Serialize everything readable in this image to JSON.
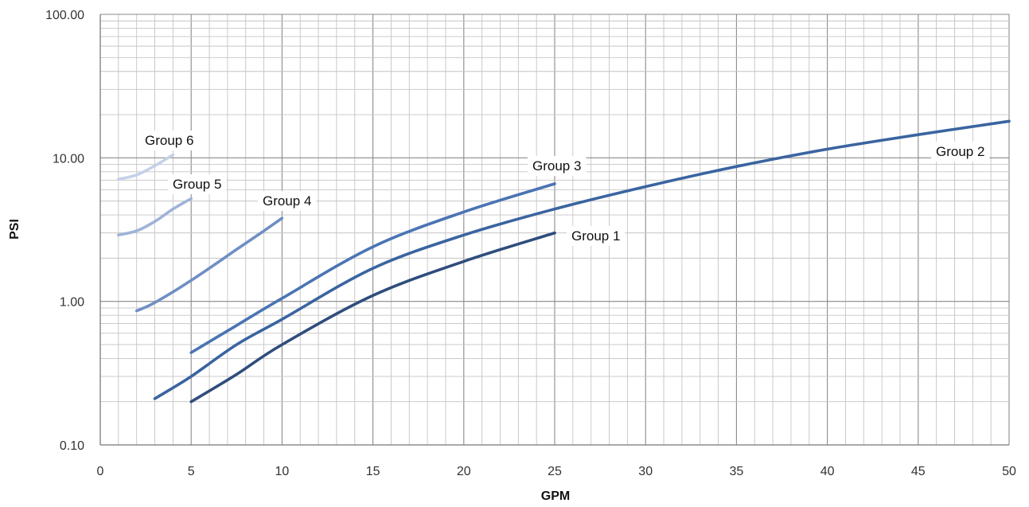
{
  "chart_data": {
    "type": "line",
    "xlabel": "GPM",
    "ylabel": "PSI",
    "xlim": [
      0,
      50
    ],
    "ylim": [
      0.1,
      100
    ],
    "y_scale": "log",
    "grid": true,
    "x_ticks": [
      "0",
      "5",
      "10",
      "15",
      "20",
      "25",
      "30",
      "35",
      "40",
      "45",
      "50"
    ],
    "y_ticks": [
      "0.10",
      "1.00",
      "10.00",
      "100.00"
    ],
    "series": [
      {
        "name": "Group 1",
        "color": "#2f4d7c",
        "x": [
          5,
          7.5,
          10,
          15,
          20,
          25
        ],
        "y": [
          0.2,
          0.31,
          0.5,
          1.1,
          1.9,
          3.0
        ]
      },
      {
        "name": "Group 2",
        "color": "#3a64a0",
        "x": [
          3,
          5,
          7.5,
          10,
          15,
          20,
          25,
          30,
          35,
          40,
          45,
          50
        ],
        "y": [
          0.21,
          0.3,
          0.5,
          0.75,
          1.7,
          2.9,
          4.4,
          6.3,
          8.7,
          11.5,
          14.5,
          18.0
        ]
      },
      {
        "name": "Group 3",
        "color": "#4a74b4",
        "x": [
          5,
          7.5,
          10,
          15,
          20,
          25
        ],
        "y": [
          0.44,
          0.68,
          1.05,
          2.4,
          4.2,
          6.6
        ]
      },
      {
        "name": "Group 4",
        "color": "#6f8fc4",
        "x": [
          2,
          3,
          5,
          7.5,
          9,
          10
        ],
        "y": [
          0.86,
          0.98,
          1.4,
          2.3,
          3.1,
          3.8
        ]
      },
      {
        "name": "Group 5",
        "color": "#9fb3d8",
        "x": [
          1,
          2,
          3,
          4,
          5
        ],
        "y": [
          2.9,
          3.1,
          3.6,
          4.4,
          5.2
        ]
      },
      {
        "name": "Group 6",
        "color": "#c5d1e7",
        "x": [
          1,
          2,
          3,
          4
        ],
        "y": [
          7.1,
          7.6,
          8.8,
          10.5
        ]
      }
    ]
  }
}
